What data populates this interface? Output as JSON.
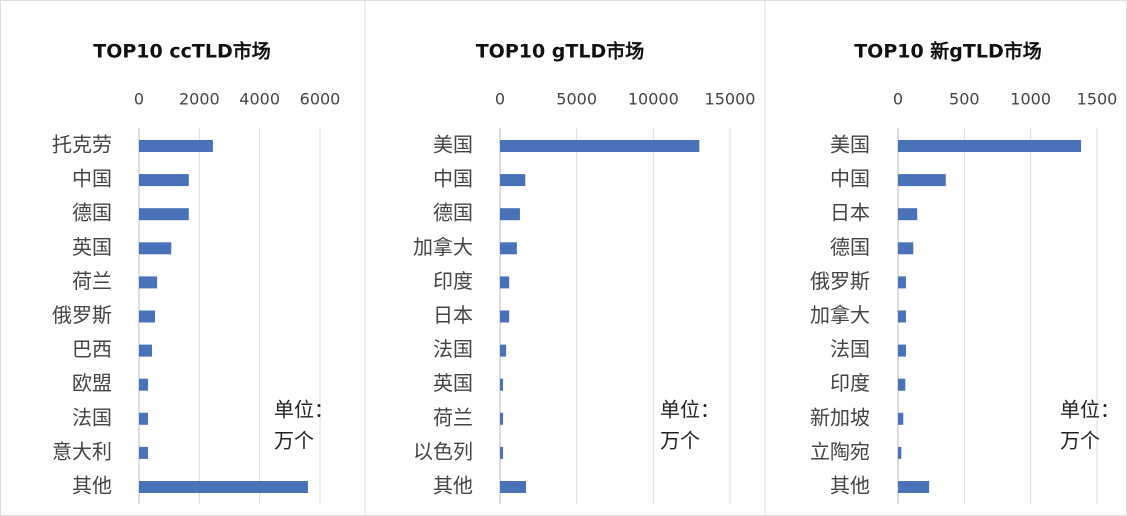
{
  "chart_data": [
    {
      "type": "bar",
      "orientation": "horizontal",
      "title": "TOP10 ccTLD市场",
      "categories": [
        "托克劳",
        "中国",
        "德国",
        "英国",
        "荷兰",
        "俄罗斯",
        "巴西",
        "欧盟",
        "法国",
        "意大利",
        "其他"
      ],
      "values": [
        2450,
        1650,
        1650,
        1070,
        600,
        530,
        430,
        300,
        300,
        300,
        5600
      ],
      "color": "#4a72b8",
      "xlim": [
        0,
        6000
      ],
      "xticks": [
        0,
        2000,
        4000,
        6000
      ],
      "grid": true,
      "annotation": [
        "单位：",
        "万个"
      ]
    },
    {
      "type": "bar",
      "orientation": "horizontal",
      "title": "TOP10 gTLD市场",
      "categories": [
        "美国",
        "中国",
        "德国",
        "加拿大",
        "印度",
        "日本",
        "法国",
        "英国",
        "荷兰",
        "以色列",
        "其他"
      ],
      "values": [
        13000,
        1650,
        1300,
        1100,
        600,
        600,
        400,
        200,
        200,
        200,
        1700
      ],
      "color": "#4a72b8",
      "xlim": [
        0,
        15000
      ],
      "xticks": [
        0,
        5000,
        10000,
        15000
      ],
      "grid": true,
      "annotation": [
        "单位：",
        "万个"
      ]
    },
    {
      "type": "bar",
      "orientation": "horizontal",
      "title": "TOP10 新gTLD市场",
      "categories": [
        "美国",
        "中国",
        "日本",
        "德国",
        "俄罗斯",
        "加拿大",
        "法国",
        "印度",
        "新加坡",
        "立陶宛",
        "其他"
      ],
      "values": [
        1380,
        360,
        145,
        115,
        60,
        60,
        60,
        55,
        40,
        25,
        235
      ],
      "color": "#4a72b8",
      "xlim": [
        0,
        1500
      ],
      "xticks": [
        0,
        500,
        1000,
        1500
      ],
      "grid": true,
      "annotation": [
        "单位：",
        "万个"
      ]
    }
  ]
}
